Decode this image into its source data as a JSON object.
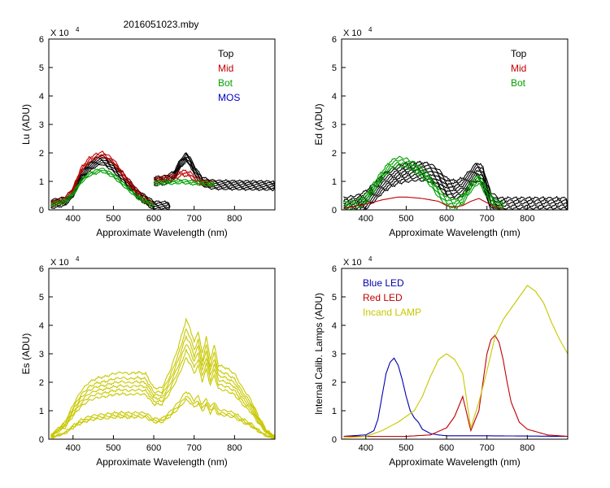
{
  "figure_title": "2016051023.mby",
  "colors": {
    "top": "#000000",
    "mid": "#c00000",
    "bot": "#00a000",
    "mos": "#0000c0",
    "blue_led": "#0000b0",
    "red_led": "#c00000",
    "incand": "#c8c800"
  },
  "chart_data": [
    {
      "id": "lu",
      "type": "line",
      "title": "",
      "xlabel": "Approximate Wavelength (nm)",
      "ylabel": "Lu (ADU)",
      "multiplier": "X 10",
      "exponent": "4",
      "xlim": [
        340,
        900
      ],
      "ylim": [
        0,
        6
      ],
      "xticks": [
        400,
        500,
        600,
        700,
        800
      ],
      "yticks": [
        0,
        1,
        2,
        3,
        4,
        5,
        6
      ],
      "legend": [
        {
          "label": "Top",
          "color": "#000000"
        },
        {
          "label": "Mid",
          "color": "#c00000"
        },
        {
          "label": "Bot",
          "color": "#00a000"
        },
        {
          "label": "MOS",
          "color": "#0000c0"
        }
      ],
      "series": [
        {
          "name": "Top",
          "color": "#000000",
          "count": 6,
          "spread": 0.06,
          "segments": [
            {
              "x": [
                345,
                380,
                400,
                420,
                440,
                460,
                470,
                480,
                500,
                520,
                540,
                560,
                580,
                600,
                640
              ],
              "y": [
                0.2,
                0.3,
                0.6,
                1.2,
                1.5,
                1.7,
                1.75,
                1.7,
                1.5,
                1.2,
                0.9,
                0.55,
                0.35,
                0.15,
                0.12
              ]
            },
            {
              "x": [
                600,
                630,
                650,
                665,
                680,
                690,
                700,
                720,
                740,
                760,
                800,
                900
              ],
              "y": [
                1.0,
                1.05,
                1.2,
                1.6,
                1.85,
                1.7,
                1.4,
                1.0,
                0.9,
                0.88,
                0.87,
                0.85
              ]
            }
          ]
        },
        {
          "name": "Mid",
          "color": "#c00000",
          "count": 3,
          "spread": 0.08,
          "segments": [
            {
              "x": [
                345,
                380,
                400,
                420,
                440,
                460,
                470,
                480,
                500,
                520,
                540,
                560,
                580,
                600
              ],
              "y": [
                0.2,
                0.35,
                0.7,
                1.4,
                1.75,
                1.9,
                1.95,
                1.9,
                1.7,
                1.3,
                0.95,
                0.6,
                0.35,
                0.15
              ]
            },
            {
              "x": [
                600,
                630,
                650,
                670,
                690,
                700,
                720,
                750
              ],
              "y": [
                1.0,
                1.1,
                1.15,
                1.3,
                1.25,
                1.1,
                0.95,
                0.9
              ]
            }
          ]
        },
        {
          "name": "Bot",
          "color": "#00a000",
          "count": 3,
          "spread": 0.06,
          "segments": [
            {
              "x": [
                345,
                380,
                400,
                420,
                440,
                460,
                470,
                480,
                500,
                520,
                540,
                560,
                580,
                600
              ],
              "y": [
                0.18,
                0.3,
                0.55,
                1.0,
                1.25,
                1.35,
                1.4,
                1.35,
                1.2,
                0.95,
                0.7,
                0.45,
                0.3,
                0.15
              ]
            },
            {
              "x": [
                600,
                640,
                670,
                700,
                750
              ],
              "y": [
                0.95,
                0.97,
                1.0,
                0.95,
                0.9
              ]
            }
          ]
        }
      ]
    },
    {
      "id": "ed",
      "type": "line",
      "title": "",
      "xlabel": "Approximate Wavelength (nm)",
      "ylabel": "Ed  (ADU)",
      "multiplier": "X 10",
      "exponent": "4",
      "xlim": [
        340,
        900
      ],
      "ylim": [
        0,
        6
      ],
      "xticks": [
        400,
        500,
        600,
        700,
        800
      ],
      "yticks": [
        0,
        1,
        2,
        3,
        4,
        5,
        6
      ],
      "legend": [
        {
          "label": "Top",
          "color": "#000000"
        },
        {
          "label": "Mid",
          "color": "#c00000"
        },
        {
          "label": "Bot",
          "color": "#00a000"
        }
      ],
      "series": [
        {
          "name": "Top",
          "color": "#000000",
          "count": 8,
          "spread": 0.09,
          "segments": [
            {
              "x": [
                345,
                380,
                400,
                420,
                440,
                460,
                480,
                500,
                520,
                540,
                560,
                580,
                600,
                620,
                640,
                660,
                675,
                690,
                700,
                710,
                730,
                800,
                900
              ],
              "y": [
                0.1,
                0.2,
                0.35,
                0.6,
                0.9,
                1.1,
                1.25,
                1.3,
                1.35,
                1.35,
                1.3,
                1.1,
                0.8,
                0.7,
                0.8,
                1.1,
                1.35,
                1.2,
                0.7,
                0.3,
                0.1,
                0.1,
                0.1
              ]
            }
          ]
        },
        {
          "name": "Bot",
          "color": "#00a000",
          "count": 4,
          "spread": 0.1,
          "segments": [
            {
              "x": [
                345,
                380,
                400,
                420,
                440,
                460,
                480,
                500,
                520,
                540,
                560,
                580,
                600,
                620,
                640,
                660,
                680,
                700,
                720,
                740
              ],
              "y": [
                0.1,
                0.2,
                0.4,
                0.8,
                1.2,
                1.55,
                1.7,
                1.65,
                1.5,
                1.3,
                1.0,
                0.6,
                0.3,
                0.2,
                0.35,
                0.8,
                1.1,
                0.6,
                0.2,
                0.1
              ]
            }
          ]
        },
        {
          "name": "Mid",
          "color": "#c00000",
          "count": 1,
          "spread": 0,
          "segments": [
            {
              "x": [
                345,
                400,
                440,
                480,
                500,
                540,
                580,
                600,
                620,
                640,
                660,
                680,
                700,
                720,
                740
              ],
              "y": [
                0.05,
                0.2,
                0.35,
                0.45,
                0.45,
                0.4,
                0.3,
                0.15,
                0.1,
                0.15,
                0.3,
                0.4,
                0.25,
                0.1,
                0.05
              ]
            }
          ]
        }
      ]
    },
    {
      "id": "es",
      "type": "line",
      "title": "",
      "xlabel": "Approximate Wavelength (nm)",
      "ylabel": "Es  (ADU)",
      "multiplier": "X 10",
      "exponent": "4",
      "xlim": [
        340,
        900
      ],
      "ylim": [
        0,
        6
      ],
      "xticks": [
        400,
        500,
        600,
        700,
        800
      ],
      "yticks": [
        0,
        1,
        2,
        3,
        4,
        5,
        6
      ],
      "legend": [],
      "series": [
        {
          "name": "Es",
          "color": "#c8c800",
          "count": 1,
          "spread": 0,
          "scales": [
            1.0,
            0.92,
            0.86,
            0.8,
            0.74,
            0.68,
            0.4,
            0.36,
            0.33
          ],
          "segments": [
            {
              "x": [
                345,
                380,
                400,
                420,
                440,
                460,
                480,
                500,
                520,
                540,
                560,
                580,
                600,
                620,
                640,
                660,
                680,
                690,
                700,
                710,
                720,
                730,
                740,
                750,
                760,
                780,
                800,
                820,
                840,
                860,
                880,
                900
              ],
              "y": [
                0.15,
                0.6,
                1.2,
                1.7,
                2.0,
                2.15,
                2.2,
                2.3,
                2.35,
                2.3,
                2.35,
                2.3,
                1.8,
                1.8,
                2.4,
                3.2,
                4.2,
                3.9,
                3.4,
                3.8,
                3.0,
                3.6,
                2.8,
                3.3,
                2.6,
                2.5,
                2.3,
                1.8,
                1.4,
                0.8,
                0.3,
                0.1
              ]
            }
          ]
        }
      ]
    },
    {
      "id": "lamps",
      "type": "line",
      "title": "",
      "xlabel": "Approximate Wavelength (nm)",
      "ylabel": "Internal Calib. Lamps (ADU)",
      "multiplier": "X 10",
      "exponent": "4",
      "xlim": [
        340,
        900
      ],
      "ylim": [
        0,
        6
      ],
      "xticks": [
        400,
        500,
        600,
        700,
        800
      ],
      "yticks": [
        0,
        1,
        2,
        3,
        4,
        5,
        6
      ],
      "legend": [
        {
          "label": "Blue LED",
          "color": "#0000b0"
        },
        {
          "label": "Red LED",
          "color": "#c00000"
        },
        {
          "label": "Incand LAMP",
          "color": "#c8c800"
        }
      ],
      "series": [
        {
          "name": "Blue LED",
          "color": "#0000b0",
          "count": 1,
          "spread": 0,
          "segments": [
            {
              "x": [
                345,
                400,
                420,
                430,
                440,
                450,
                460,
                470,
                480,
                490,
                500,
                510,
                520,
                530,
                540,
                560,
                580,
                600,
                650,
                700,
                900
              ],
              "y": [
                0.1,
                0.15,
                0.3,
                0.7,
                1.5,
                2.3,
                2.7,
                2.85,
                2.6,
                2.1,
                1.5,
                1.0,
                0.75,
                0.6,
                0.35,
                0.2,
                0.15,
                0.12,
                0.12,
                0.12,
                0.1
              ]
            }
          ]
        },
        {
          "name": "Red LED",
          "color": "#c00000",
          "count": 1,
          "spread": 0,
          "segments": [
            {
              "x": [
                345,
                500,
                560,
                600,
                620,
                640,
                660,
                680,
                690,
                700,
                710,
                720,
                730,
                740,
                750,
                760,
                780,
                800,
                850,
                900
              ],
              "y": [
                0.1,
                0.1,
                0.15,
                0.4,
                0.8,
                1.5,
                0.3,
                1.0,
                2.0,
                3.0,
                3.5,
                3.65,
                3.4,
                2.8,
                2.0,
                1.3,
                0.6,
                0.35,
                0.15,
                0.1
              ]
            }
          ]
        },
        {
          "name": "Incand LAMP",
          "color": "#c8c800",
          "count": 1,
          "spread": 0,
          "segments": [
            {
              "x": [
                345,
                400,
                440,
                480,
                500,
                520,
                540,
                560,
                580,
                600,
                620,
                640,
                660,
                680,
                700,
                720,
                740,
                760,
                780,
                800,
                820,
                840,
                860,
                880,
                900
              ],
              "y": [
                0.05,
                0.1,
                0.3,
                0.6,
                0.8,
                1.0,
                1.5,
                2.2,
                2.8,
                3.0,
                2.8,
                2.3,
                0.4,
                1.3,
                2.4,
                3.6,
                4.2,
                4.6,
                5.0,
                5.4,
                5.2,
                4.8,
                4.1,
                3.5,
                3.0
              ]
            }
          ]
        }
      ]
    }
  ]
}
